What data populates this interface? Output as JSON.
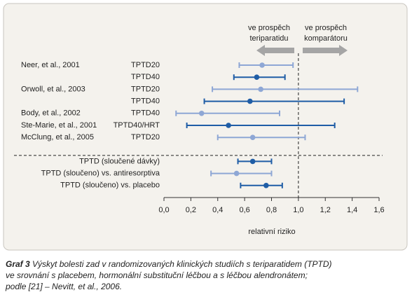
{
  "chart_data": {
    "type": "forest",
    "left_note": [
      "ve prospěch",
      "teriparatidu"
    ],
    "right_note": [
      "ve prospěch",
      "komparátoru"
    ],
    "xlabel": "relativní riziko",
    "reference": 1,
    "xlim": [
      0,
      1.6
    ],
    "xticks": [
      {
        "value": 0,
        "label": "0,0"
      },
      {
        "value": 0.2,
        "label": "0,2"
      },
      {
        "value": 0.4,
        "label": "0,4"
      },
      {
        "value": 0.6,
        "label": "0,6"
      },
      {
        "value": 0.8,
        "label": "0,8"
      },
      {
        "value": 1,
        "label": "1,0"
      },
      {
        "value": 1.2,
        "label": "1,2"
      },
      {
        "value": 1.4,
        "label": "1,4"
      },
      {
        "value": 1.6,
        "label": "1,6"
      }
    ],
    "groups": [
      {
        "rows": [
          {
            "study": "Neer, et al., 2001",
            "label": "TPTD20",
            "value": 0.73,
            "ci": [
              0.56,
              0.96
            ],
            "color": "#8ea7d5"
          },
          {
            "label": "TPTD40",
            "value": 0.69,
            "ci": [
              0.52,
              0.9
            ],
            "color": "#1f5da6"
          },
          {
            "study": "Orwoll, et al., 2003",
            "label": "TPTD20",
            "value": 0.72,
            "ci": [
              0.36,
              1.44
            ],
            "color": "#8ea7d5"
          },
          {
            "label": "TPTD40",
            "value": 0.64,
            "ci": [
              0.3,
              1.34
            ],
            "color": "#1f5da6"
          },
          {
            "study": "Body, et al., 2002",
            "label": "TPTD40",
            "value": 0.28,
            "ci": [
              0.09,
              0.86
            ],
            "color": "#8ea7d5"
          },
          {
            "study": "Ste-Marie, et al., 2001",
            "label": "TPTD40/HRT",
            "value": 0.48,
            "ci": [
              0.17,
              1.27
            ],
            "color": "#1f5da6"
          },
          {
            "study": "McClung, et al., 2005",
            "label": "TPTD20",
            "value": 0.66,
            "ci": [
              0.4,
              1.05
            ],
            "color": "#8ea7d5"
          }
        ]
      },
      {
        "rows": [
          {
            "label": "TPTD (sloučené dávky)",
            "value": 0.66,
            "ci": [
              0.55,
              0.8
            ],
            "color": "#1f5da6"
          },
          {
            "label": "TPTD (sloučeno) vs. antiresorptiva",
            "value": 0.54,
            "ci": [
              0.35,
              0.8
            ],
            "color": "#8ea7d5"
          },
          {
            "label": "TPTD (sloučeno) vs. placebo",
            "value": 0.76,
            "ci": [
              0.57,
              0.88
            ],
            "color": "#1f5da6"
          }
        ]
      }
    ],
    "caption": {
      "label": "Graf 3",
      "lines": [
        "Výskyt bolesti zad v randomizovaných klinických studiích s teriparatidem (TPTD)",
        "ve srovnání s placebem, hormonální substituční léčbou a s léčbou alendronátem;",
        "podle [21] – Nevitt, et al., 2006."
      ]
    }
  }
}
